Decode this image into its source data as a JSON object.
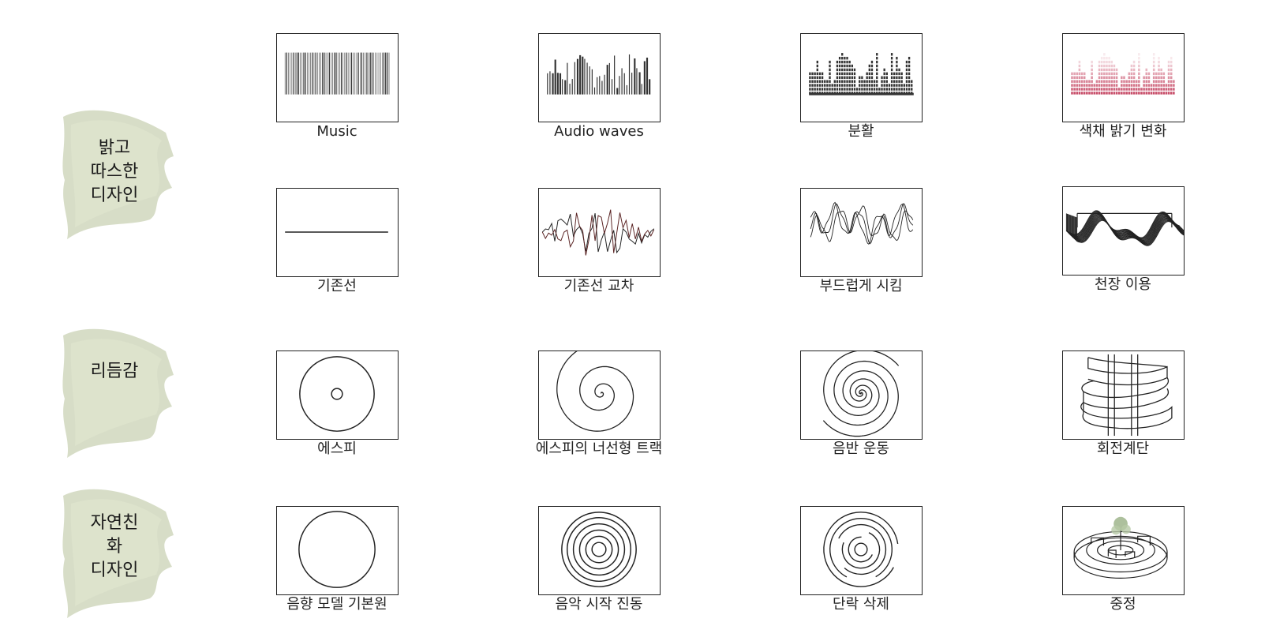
{
  "categories": [
    {
      "id": "warm",
      "label": "밝고\n따스한\n디자인"
    },
    {
      "id": "rhythm",
      "label": "리듬감"
    },
    {
      "id": "nature",
      "label": "자연친화\n디자인"
    }
  ],
  "tiles": [
    {
      "caption": "Music",
      "icon": "barcode-bars-icon"
    },
    {
      "caption": "Audio waves",
      "icon": "audio-bars-icon"
    },
    {
      "caption": "분활",
      "icon": "segmented-bars-icon"
    },
    {
      "caption": "색채 밝기 변화",
      "icon": "gradient-bars-icon"
    },
    {
      "caption": "기존선",
      "icon": "flat-line-icon"
    },
    {
      "caption": "기존선 교차",
      "icon": "zigzag-wave-icon"
    },
    {
      "caption": "부드럽게 시킴",
      "icon": "smooth-wave-icon"
    },
    {
      "caption": "천장 이용",
      "icon": "ceiling-wave-icon"
    },
    {
      "caption": "에스피",
      "icon": "disc-icon"
    },
    {
      "caption": "에스피의 너선형 트랙",
      "icon": "spiral-track-icon"
    },
    {
      "caption": "음반 운동",
      "icon": "double-spiral-icon"
    },
    {
      "caption": "회전계단",
      "icon": "spiral-staircase-icon"
    },
    {
      "caption": "음향 모델 기본원",
      "icon": "circle-icon"
    },
    {
      "caption": "음악 시작 진동",
      "icon": "concentric-rings-icon"
    },
    {
      "caption": "단락 삭제",
      "icon": "broken-rings-icon"
    },
    {
      "caption": "중정",
      "icon": "courtyard-model-icon"
    }
  ],
  "colors": {
    "brush": "#c9d2b4",
    "line": "#222222",
    "accent_pink": "#c8506b",
    "tree_green": "#9fb58c"
  }
}
